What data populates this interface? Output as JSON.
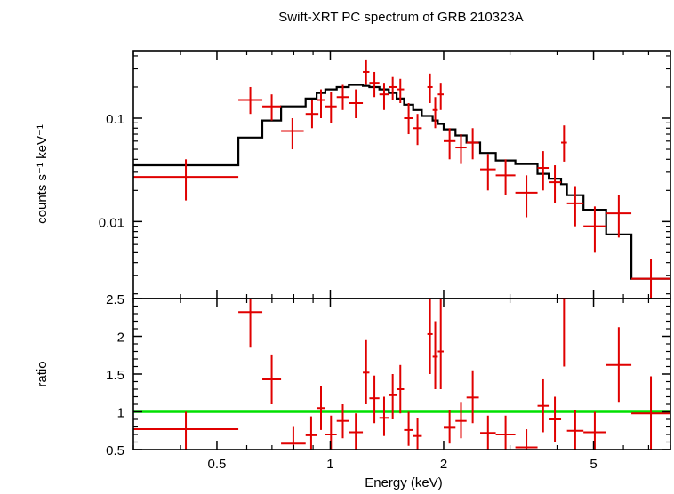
{
  "chart_data": {
    "type": "scatter",
    "title": "Swift-XRT PC spectrum of GRB 210323A",
    "xlabel": "Energy (keV)",
    "x_scale": "log",
    "xlim": [
      0.3,
      8.0
    ],
    "x_ticks": [
      {
        "value": 0.5,
        "label": "0.5"
      },
      {
        "value": 1,
        "label": "1"
      },
      {
        "value": 2,
        "label": "2"
      },
      {
        "value": 5,
        "label": "5"
      }
    ],
    "colors": {
      "data": "#e00000",
      "model": "#000000",
      "unity": "#00e000"
    },
    "panels": [
      {
        "name": "spectrum",
        "ylabel": "counts s⁻¹ keV⁻¹",
        "y_scale": "log",
        "ylim": [
          0.0018,
          0.45
        ],
        "y_ticks": [
          {
            "value": 0.1,
            "label": "0.1"
          },
          {
            "value": 0.01,
            "label": "0.01"
          }
        ],
        "data": [
          {
            "xlo": 0.3,
            "xhi": 0.57,
            "y": 0.027,
            "ylo": 0.016,
            "yhi": 0.04
          },
          {
            "xlo": 0.57,
            "xhi": 0.66,
            "y": 0.15,
            "ylo": 0.11,
            "yhi": 0.2
          },
          {
            "xlo": 0.66,
            "xhi": 0.74,
            "y": 0.13,
            "ylo": 0.095,
            "yhi": 0.17
          },
          {
            "xlo": 0.74,
            "xhi": 0.85,
            "y": 0.075,
            "ylo": 0.05,
            "yhi": 0.1
          },
          {
            "xlo": 0.86,
            "xhi": 0.93,
            "y": 0.11,
            "ylo": 0.08,
            "yhi": 0.15
          },
          {
            "xlo": 0.92,
            "xhi": 0.97,
            "y": 0.15,
            "ylo": 0.1,
            "yhi": 0.19
          },
          {
            "xlo": 0.97,
            "xhi": 1.04,
            "y": 0.13,
            "ylo": 0.09,
            "yhi": 0.18
          },
          {
            "xlo": 1.04,
            "xhi": 1.12,
            "y": 0.16,
            "ylo": 0.12,
            "yhi": 0.21
          },
          {
            "xlo": 1.12,
            "xhi": 1.22,
            "y": 0.14,
            "ylo": 0.1,
            "yhi": 0.19
          },
          {
            "xlo": 1.22,
            "xhi": 1.27,
            "y": 0.28,
            "ylo": 0.21,
            "yhi": 0.37
          },
          {
            "xlo": 1.27,
            "xhi": 1.35,
            "y": 0.22,
            "ylo": 0.16,
            "yhi": 0.28
          },
          {
            "xlo": 1.35,
            "xhi": 1.43,
            "y": 0.17,
            "ylo": 0.12,
            "yhi": 0.22
          },
          {
            "xlo": 1.43,
            "xhi": 1.5,
            "y": 0.2,
            "ylo": 0.15,
            "yhi": 0.25
          },
          {
            "xlo": 1.5,
            "xhi": 1.57,
            "y": 0.19,
            "ylo": 0.14,
            "yhi": 0.24
          },
          {
            "xlo": 1.57,
            "xhi": 1.66,
            "y": 0.1,
            "ylo": 0.07,
            "yhi": 0.14
          },
          {
            "xlo": 1.66,
            "xhi": 1.75,
            "y": 0.08,
            "ylo": 0.055,
            "yhi": 0.11
          },
          {
            "xlo": 1.81,
            "xhi": 1.87,
            "y": 0.2,
            "ylo": 0.14,
            "yhi": 0.27
          },
          {
            "xlo": 1.87,
            "xhi": 1.93,
            "y": 0.12,
            "ylo": 0.08,
            "yhi": 0.16
          },
          {
            "xlo": 1.93,
            "xhi": 2.0,
            "y": 0.17,
            "ylo": 0.12,
            "yhi": 0.22
          },
          {
            "xlo": 2.0,
            "xhi": 2.15,
            "y": 0.06,
            "ylo": 0.04,
            "yhi": 0.08
          },
          {
            "xlo": 2.15,
            "xhi": 2.3,
            "y": 0.052,
            "ylo": 0.036,
            "yhi": 0.07
          },
          {
            "xlo": 2.3,
            "xhi": 2.48,
            "y": 0.058,
            "ylo": 0.04,
            "yhi": 0.08
          },
          {
            "xlo": 2.5,
            "xhi": 2.75,
            "y": 0.032,
            "ylo": 0.02,
            "yhi": 0.045
          },
          {
            "xlo": 2.75,
            "xhi": 3.1,
            "y": 0.028,
            "ylo": 0.018,
            "yhi": 0.04
          },
          {
            "xlo": 3.1,
            "xhi": 3.55,
            "y": 0.019,
            "ylo": 0.011,
            "yhi": 0.028
          },
          {
            "xlo": 3.55,
            "xhi": 3.8,
            "y": 0.033,
            "ylo": 0.02,
            "yhi": 0.048
          },
          {
            "xlo": 3.8,
            "xhi": 4.1,
            "y": 0.024,
            "ylo": 0.015,
            "yhi": 0.035
          },
          {
            "xlo": 4.1,
            "xhi": 4.25,
            "y": 0.058,
            "ylo": 0.038,
            "yhi": 0.085
          },
          {
            "xlo": 4.25,
            "xhi": 4.7,
            "y": 0.015,
            "ylo": 0.009,
            "yhi": 0.022
          },
          {
            "xlo": 4.7,
            "xhi": 5.4,
            "y": 0.009,
            "ylo": 0.005,
            "yhi": 0.014
          },
          {
            "xlo": 5.4,
            "xhi": 6.3,
            "y": 0.012,
            "ylo": 0.007,
            "yhi": 0.018
          },
          {
            "xlo": 6.3,
            "xhi": 8.0,
            "y": 0.0028,
            "ylo": 0.0018,
            "yhi": 0.0043
          }
        ],
        "model": [
          {
            "xlo": 0.3,
            "xhi": 0.57,
            "y": 0.035
          },
          {
            "xlo": 0.57,
            "xhi": 0.66,
            "y": 0.065
          },
          {
            "xlo": 0.66,
            "xhi": 0.74,
            "y": 0.095
          },
          {
            "xlo": 0.74,
            "xhi": 0.86,
            "y": 0.13
          },
          {
            "xlo": 0.86,
            "xhi": 0.92,
            "y": 0.155
          },
          {
            "xlo": 0.92,
            "xhi": 0.97,
            "y": 0.175
          },
          {
            "xlo": 0.97,
            "xhi": 1.04,
            "y": 0.19
          },
          {
            "xlo": 1.04,
            "xhi": 1.12,
            "y": 0.2
          },
          {
            "xlo": 1.12,
            "xhi": 1.22,
            "y": 0.21
          },
          {
            "xlo": 1.22,
            "xhi": 1.27,
            "y": 0.205
          },
          {
            "xlo": 1.27,
            "xhi": 1.35,
            "y": 0.2
          },
          {
            "xlo": 1.35,
            "xhi": 1.43,
            "y": 0.19
          },
          {
            "xlo": 1.43,
            "xhi": 1.5,
            "y": 0.175
          },
          {
            "xlo": 1.5,
            "xhi": 1.57,
            "y": 0.155
          },
          {
            "xlo": 1.57,
            "xhi": 1.66,
            "y": 0.135
          },
          {
            "xlo": 1.66,
            "xhi": 1.75,
            "y": 0.12
          },
          {
            "xlo": 1.75,
            "xhi": 1.87,
            "y": 0.105
          },
          {
            "xlo": 1.87,
            "xhi": 1.93,
            "y": 0.095
          },
          {
            "xlo": 1.93,
            "xhi": 2.0,
            "y": 0.088
          },
          {
            "xlo": 2.0,
            "xhi": 2.15,
            "y": 0.078
          },
          {
            "xlo": 2.15,
            "xhi": 2.3,
            "y": 0.068
          },
          {
            "xlo": 2.3,
            "xhi": 2.5,
            "y": 0.058
          },
          {
            "xlo": 2.5,
            "xhi": 2.75,
            "y": 0.046
          },
          {
            "xlo": 2.75,
            "xhi": 3.1,
            "y": 0.039
          },
          {
            "xlo": 3.1,
            "xhi": 3.55,
            "y": 0.036
          },
          {
            "xlo": 3.55,
            "xhi": 3.8,
            "y": 0.029
          },
          {
            "xlo": 3.8,
            "xhi": 4.1,
            "y": 0.026
          },
          {
            "xlo": 4.1,
            "xhi": 4.25,
            "y": 0.023
          },
          {
            "xlo": 4.25,
            "xhi": 4.7,
            "y": 0.018
          },
          {
            "xlo": 4.7,
            "xhi": 5.4,
            "y": 0.013
          },
          {
            "xlo": 5.4,
            "xhi": 6.3,
            "y": 0.0075
          },
          {
            "xlo": 6.3,
            "xhi": 8.0,
            "y": 0.0028
          }
        ]
      },
      {
        "name": "ratio",
        "ylabel": "ratio",
        "y_scale": "linear",
        "ylim": [
          0.5,
          2.5
        ],
        "y_ticks": [
          {
            "value": 0.5,
            "label": "0.5"
          },
          {
            "value": 1,
            "label": "1"
          },
          {
            "value": 1.5,
            "label": "1.5"
          },
          {
            "value": 2,
            "label": "2"
          },
          {
            "value": 2.5,
            "label": "2.5"
          }
        ],
        "reference_line": 1.0,
        "data": [
          {
            "xlo": 0.3,
            "xhi": 0.57,
            "y": 0.77,
            "ylo": 0.5,
            "yhi": 1.0
          },
          {
            "xlo": 0.57,
            "xhi": 0.66,
            "y": 2.32,
            "ylo": 1.85,
            "yhi": 2.5
          },
          {
            "xlo": 0.66,
            "xhi": 0.74,
            "y": 1.43,
            "ylo": 1.1,
            "yhi": 1.76
          },
          {
            "xlo": 0.74,
            "xhi": 0.86,
            "y": 0.58,
            "ylo": 0.5,
            "yhi": 0.8
          },
          {
            "xlo": 0.86,
            "xhi": 0.92,
            "y": 0.69,
            "ylo": 0.5,
            "yhi": 0.94
          },
          {
            "xlo": 0.92,
            "xhi": 0.97,
            "y": 1.05,
            "ylo": 0.76,
            "yhi": 1.34
          },
          {
            "xlo": 0.97,
            "xhi": 1.04,
            "y": 0.7,
            "ylo": 0.5,
            "yhi": 0.95
          },
          {
            "xlo": 1.04,
            "xhi": 1.12,
            "y": 0.88,
            "ylo": 0.65,
            "yhi": 1.1
          },
          {
            "xlo": 1.12,
            "xhi": 1.22,
            "y": 0.73,
            "ylo": 0.5,
            "yhi": 0.98
          },
          {
            "xlo": 1.22,
            "xhi": 1.27,
            "y": 1.52,
            "ylo": 1.1,
            "yhi": 1.95
          },
          {
            "xlo": 1.27,
            "xhi": 1.35,
            "y": 1.18,
            "ylo": 0.85,
            "yhi": 1.48
          },
          {
            "xlo": 1.35,
            "xhi": 1.43,
            "y": 0.92,
            "ylo": 0.68,
            "yhi": 1.2
          },
          {
            "xlo": 1.43,
            "xhi": 1.5,
            "y": 1.22,
            "ylo": 0.9,
            "yhi": 1.5
          },
          {
            "xlo": 1.5,
            "xhi": 1.57,
            "y": 1.3,
            "ylo": 0.98,
            "yhi": 1.62
          },
          {
            "xlo": 1.57,
            "xhi": 1.66,
            "y": 0.76,
            "ylo": 0.55,
            "yhi": 1.0
          },
          {
            "xlo": 1.66,
            "xhi": 1.75,
            "y": 0.68,
            "ylo": 0.5,
            "yhi": 0.92
          },
          {
            "xlo": 1.81,
            "xhi": 1.87,
            "y": 2.03,
            "ylo": 1.5,
            "yhi": 2.5
          },
          {
            "xlo": 1.87,
            "xhi": 1.93,
            "y": 1.73,
            "ylo": 1.3,
            "yhi": 2.2
          },
          {
            "xlo": 1.93,
            "xhi": 2.0,
            "y": 1.8,
            "ylo": 1.3,
            "yhi": 2.5
          },
          {
            "xlo": 2.0,
            "xhi": 2.15,
            "y": 0.79,
            "ylo": 0.58,
            "yhi": 1.02
          },
          {
            "xlo": 2.15,
            "xhi": 2.3,
            "y": 0.88,
            "ylo": 0.65,
            "yhi": 1.12
          },
          {
            "xlo": 2.3,
            "xhi": 2.48,
            "y": 1.19,
            "ylo": 0.85,
            "yhi": 1.55
          },
          {
            "xlo": 2.5,
            "xhi": 2.75,
            "y": 0.72,
            "ylo": 0.5,
            "yhi": 0.95
          },
          {
            "xlo": 2.75,
            "xhi": 3.1,
            "y": 0.7,
            "ylo": 0.5,
            "yhi": 0.95
          },
          {
            "xlo": 3.1,
            "xhi": 3.55,
            "y": 0.53,
            "ylo": 0.5,
            "yhi": 0.77
          },
          {
            "xlo": 3.55,
            "xhi": 3.8,
            "y": 1.08,
            "ylo": 0.73,
            "yhi": 1.43
          },
          {
            "xlo": 3.8,
            "xhi": 4.1,
            "y": 0.9,
            "ylo": 0.6,
            "yhi": 1.2
          },
          {
            "xlo": 4.1,
            "xhi": 4.25,
            "y": 2.5,
            "ylo": 1.6,
            "yhi": 2.5
          },
          {
            "xlo": 4.25,
            "xhi": 4.7,
            "y": 0.75,
            "ylo": 0.5,
            "yhi": 1.02
          },
          {
            "xlo": 4.7,
            "xhi": 5.4,
            "y": 0.73,
            "ylo": 0.5,
            "yhi": 1.0
          },
          {
            "xlo": 5.4,
            "xhi": 6.3,
            "y": 1.62,
            "ylo": 1.12,
            "yhi": 2.12
          },
          {
            "xlo": 6.3,
            "xhi": 8.0,
            "y": 0.98,
            "ylo": 0.5,
            "yhi": 1.47
          }
        ]
      }
    ]
  }
}
